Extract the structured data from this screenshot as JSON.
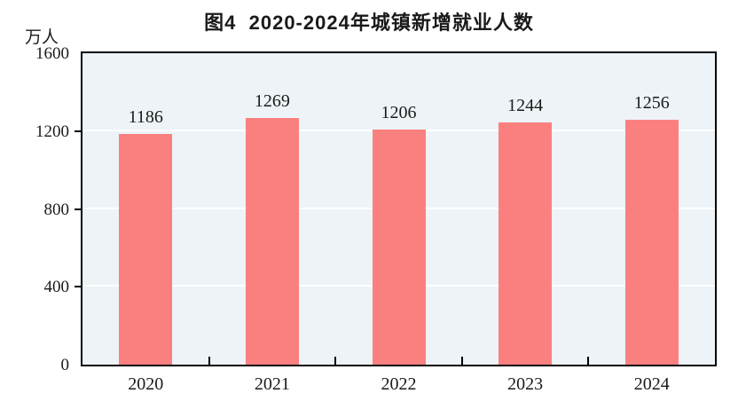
{
  "figure": {
    "title": "图4  2020-2024年城镇新增就业人数",
    "unit_label": "万人"
  },
  "colors": {
    "bar": "#fa8080",
    "plot_background": "#edf3f7",
    "gridline": "#ffffff",
    "axis": "#000000"
  },
  "chart_data": {
    "type": "bar",
    "title": "图4  2020-2024年城镇新增就业人数",
    "categories": [
      "2020",
      "2021",
      "2022",
      "2023",
      "2024"
    ],
    "values": [
      1186,
      1269,
      1206,
      1244,
      1256
    ],
    "xlabel": "",
    "ylabel": "万人",
    "ylim": [
      0,
      1600
    ],
    "yticks": [
      0,
      400,
      800,
      1200,
      1600
    ],
    "grid": true,
    "legend": "none",
    "bar_color": "#fa8080",
    "data_labels": true
  }
}
